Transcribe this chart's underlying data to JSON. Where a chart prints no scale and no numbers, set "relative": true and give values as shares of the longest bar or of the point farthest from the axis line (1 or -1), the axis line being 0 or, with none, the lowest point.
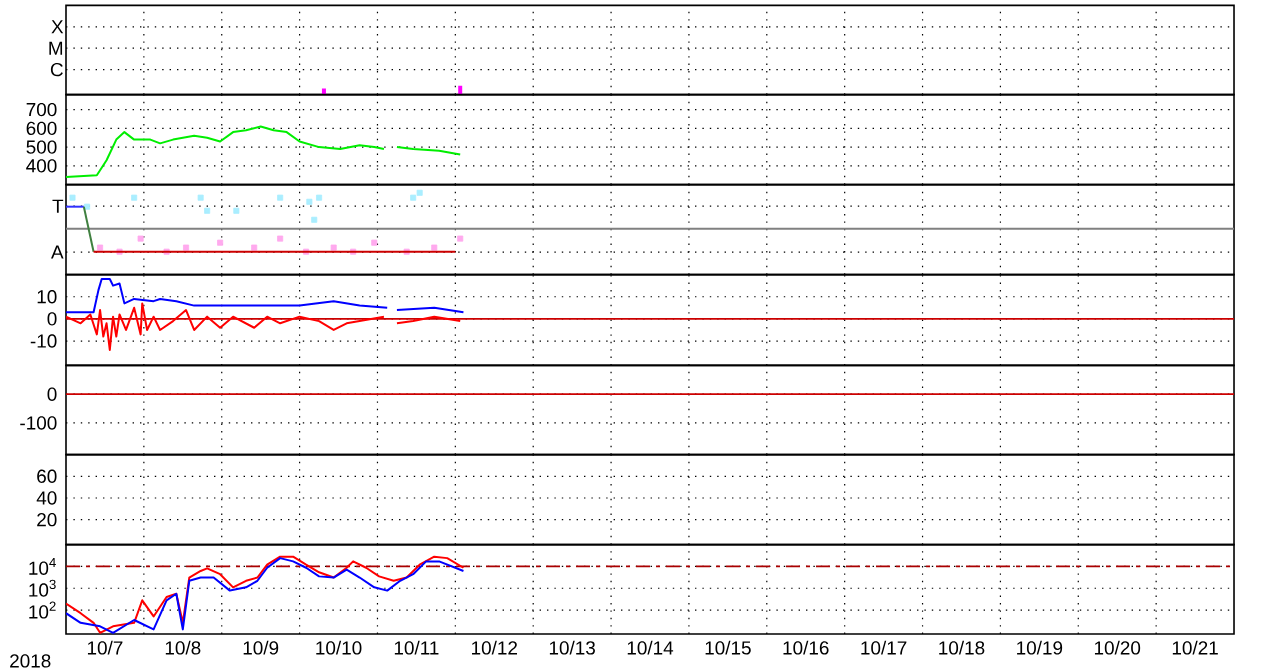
{
  "chart_data": [
    {
      "type": "bar",
      "relative": true,
      "annotations": [
        "X",
        "M",
        "C"
      ],
      "xlim": [
        "2018-10-07",
        "2018-10-22"
      ],
      "grid": true,
      "tick_labels": "y",
      "xticks": [
        {
          "value": "2018-10-08",
          "label": null
        },
        {
          "value": "2018-10-09",
          "label": null
        },
        {
          "value": "2018-10-10",
          "label": null
        },
        {
          "value": "2018-10-11",
          "label": null
        },
        {
          "value": "2018-10-12",
          "label": null
        },
        {
          "value": "2018-10-13",
          "label": null
        },
        {
          "value": "2018-10-14",
          "label": null
        },
        {
          "value": "2018-10-15",
          "label": null
        },
        {
          "value": "2018-10-16",
          "label": null
        },
        {
          "value": "2018-10-17",
          "label": null
        },
        {
          "value": "2018-10-18",
          "label": null
        },
        {
          "value": "2018-10-19",
          "label": null
        },
        {
          "value": "2018-10-20",
          "label": null
        },
        {
          "value": "2018-10-21",
          "label": null
        }
      ],
      "x": [
        "2018-10-10T07:30",
        "2018-10-12T01:30"
      ],
      "values": [
        0.67,
        1
      ],
      "color": "#ff00ff"
    },
    {
      "type": "line",
      "xlim": [
        "2018-10-07",
        "2018-10-22"
      ],
      "ylim": [
        300,
        780
      ],
      "yticks": [
        400,
        500,
        600,
        700
      ],
      "grid": true,
      "tick_labels": "y",
      "marker": "none",
      "xticks": [
        {
          "value": "2018-10-08",
          "label": null
        },
        {
          "value": "2018-10-09",
          "label": null
        },
        {
          "value": "2018-10-10",
          "label": null
        },
        {
          "value": "2018-10-11",
          "label": null
        },
        {
          "value": "2018-10-12",
          "label": null
        },
        {
          "value": "2018-10-13",
          "label": null
        },
        {
          "value": "2018-10-14",
          "label": null
        },
        {
          "value": "2018-10-15",
          "label": null
        },
        {
          "value": "2018-10-16",
          "label": null
        },
        {
          "value": "2018-10-17",
          "label": null
        },
        {
          "value": "2018-10-18",
          "label": null
        },
        {
          "value": "2018-10-19",
          "label": null
        },
        {
          "value": "2018-10-20",
          "label": null
        },
        {
          "value": "2018-10-21",
          "label": null
        }
      ],
      "x": [
        "2018-10-07T00:00",
        "2018-10-07T09:30",
        "2018-10-07T12:30",
        "2018-10-07T15:30",
        "2018-10-07T18:00",
        "2018-10-07T21:00",
        "2018-10-08T02:00",
        "2018-10-08T05:00",
        "2018-10-08T09:00",
        "2018-10-08T15:30",
        "2018-10-08T19:30",
        "2018-10-08T23:30",
        "2018-10-09T03:30",
        "2018-10-09T07:30",
        "2018-10-09T12:00",
        "2018-10-09T16:00",
        "2018-10-09T20:00",
        "2018-10-10T00:00",
        "2018-10-10T06:00",
        "2018-10-10T12:30",
        "2018-10-10T18:30",
        "2018-10-10T23:00",
        "2018-10-11T02:00",
        "2018-10-11T04:00",
        "2018-10-11T06:00",
        "2018-10-11T11:00",
        "2018-10-11T19:00",
        "2018-10-12T01:30"
      ],
      "values": [
        340,
        350,
        430,
        540,
        580,
        540,
        540,
        520,
        540,
        560,
        550,
        530,
        580,
        590,
        610,
        590,
        580,
        530,
        500,
        490,
        510,
        500,
        490,
        null,
        500,
        490,
        480,
        460
      ],
      "color": "#00ee00"
    },
    {
      "type": "scatter",
      "relative": true,
      "annotations": [
        "T",
        "A"
      ],
      "xlim": [
        "2018-10-07",
        "2018-10-22"
      ],
      "grid": true,
      "tick_labels": "y",
      "marker": "square",
      "xticks": [
        {
          "value": "2018-10-08",
          "label": null
        },
        {
          "value": "2018-10-09",
          "label": null
        },
        {
          "value": "2018-10-10",
          "label": null
        },
        {
          "value": "2018-10-11",
          "label": null
        },
        {
          "value": "2018-10-12",
          "label": null
        },
        {
          "value": "2018-10-13",
          "label": null
        },
        {
          "value": "2018-10-14",
          "label": null
        },
        {
          "value": "2018-10-15",
          "label": null
        },
        {
          "value": "2018-10-16",
          "label": null
        },
        {
          "value": "2018-10-17",
          "label": null
        },
        {
          "value": "2018-10-18",
          "label": null
        },
        {
          "value": "2018-10-19",
          "label": null
        },
        {
          "value": "2018-10-20",
          "label": null
        },
        {
          "value": "2018-10-21",
          "label": null
        }
      ],
      "ref_lines": [
        {
          "axis": "y",
          "value": 0.56,
          "color": "#808080"
        }
      ],
      "series": [
        {
          "color": "#aaeeff",
          "x": [
            "2018-10-07T02:00",
            "2018-10-07T06:30",
            "2018-10-07T21:00",
            "2018-10-08T17:30",
            "2018-10-08T19:30",
            "2018-10-09T04:30",
            "2018-10-09T18:00",
            "2018-10-10T03:00",
            "2018-10-10T04:30",
            "2018-10-10T06:00",
            "2018-10-11T11:00",
            "2018-10-11T13:00"
          ],
          "values": [
            0.94,
            0.83,
            0.94,
            0.94,
            0.78,
            0.78,
            0.94,
            0.89,
            0.67,
            0.94,
            0.94,
            1.0
          ]
        },
        {
          "color": "#ffaaee",
          "x": [
            "2018-10-07T10:30",
            "2018-10-07T16:30",
            "2018-10-07T23:00",
            "2018-10-08T07:00",
            "2018-10-08T13:00",
            "2018-10-08T23:30",
            "2018-10-09T10:00",
            "2018-10-09T18:00",
            "2018-10-10T02:00",
            "2018-10-10T10:30",
            "2018-10-10T16:30",
            "2018-10-10T23:00",
            "2018-10-11T09:00",
            "2018-10-11T17:30",
            "2018-10-12T01:30"
          ],
          "values": [
            0.33,
            0.28,
            0.44,
            0.28,
            0.33,
            0.39,
            0.33,
            0.44,
            0.28,
            0.33,
            0.28,
            0.39,
            0.28,
            0.33,
            0.44
          ]
        },
        {
          "type": "line",
          "marker": "none",
          "color": "#3030ff",
          "x": [
            "2018-10-07T00:00",
            "2018-10-07T05:30"
          ],
          "values": [
            0.83,
            0.83
          ]
        },
        {
          "type": "line",
          "marker": "none",
          "color": "#408040",
          "x": [
            "2018-10-07T05:30",
            "2018-10-07T08:30"
          ],
          "values": [
            0.83,
            0.28
          ]
        },
        {
          "type": "line",
          "marker": "none",
          "color": "#cc0000",
          "x": [
            "2018-10-07T08:30",
            "2018-10-12T00:00"
          ],
          "values": [
            0.28,
            0.28
          ]
        }
      ]
    },
    {
      "type": "line",
      "xlim": [
        "2018-10-07",
        "2018-10-22"
      ],
      "ylim": [
        -21,
        20
      ],
      "yticks": [
        -10,
        0,
        10
      ],
      "grid": true,
      "tick_labels": "y",
      "marker": "none",
      "xticks": [
        {
          "value": "2018-10-08",
          "label": null
        },
        {
          "value": "2018-10-09",
          "label": null
        },
        {
          "value": "2018-10-10",
          "label": null
        },
        {
          "value": "2018-10-11",
          "label": null
        },
        {
          "value": "2018-10-12",
          "label": null
        },
        {
          "value": "2018-10-13",
          "label": null
        },
        {
          "value": "2018-10-14",
          "label": null
        },
        {
          "value": "2018-10-15",
          "label": null
        },
        {
          "value": "2018-10-16",
          "label": null
        },
        {
          "value": "2018-10-17",
          "label": null
        },
        {
          "value": "2018-10-18",
          "label": null
        },
        {
          "value": "2018-10-19",
          "label": null
        },
        {
          "value": "2018-10-20",
          "label": null
        },
        {
          "value": "2018-10-21",
          "label": null
        }
      ],
      "ref_lines": [
        {
          "axis": "y",
          "value": 0,
          "color": "#cc0000"
        }
      ],
      "series": [
        {
          "color": "#0000ff",
          "x": [
            "2018-10-07T00:00",
            "2018-10-07T08:30",
            "2018-10-07T10:00",
            "2018-10-07T11:00",
            "2018-10-07T13:30",
            "2018-10-07T14:30",
            "2018-10-07T16:30",
            "2018-10-07T18:00",
            "2018-10-07T21:00",
            "2018-10-08T03:00",
            "2018-10-08T05:00",
            "2018-10-08T10:00",
            "2018-10-08T15:30",
            "2018-10-09T03:30",
            "2018-10-09T20:00",
            "2018-10-10T00:00",
            "2018-10-10T10:30",
            "2018-10-10T18:30",
            "2018-10-11T03:00",
            "2018-10-11T04:30",
            "2018-10-11T06:00",
            "2018-10-11T17:30",
            "2018-10-12T02:30"
          ],
          "values": [
            3,
            3,
            13,
            18,
            18,
            15,
            16,
            7,
            9,
            8,
            9,
            8,
            6,
            6,
            6,
            6,
            8,
            6,
            5,
            null,
            4,
            5,
            3
          ]
        },
        {
          "color": "#ff0000",
          "x": [
            "2018-10-07T00:00",
            "2018-10-07T04:30",
            "2018-10-07T07:30",
            "2018-10-07T09:30",
            "2018-10-07T10:30",
            "2018-10-07T11:30",
            "2018-10-07T12:30",
            "2018-10-07T13:30",
            "2018-10-07T14:30",
            "2018-10-07T15:30",
            "2018-10-07T16:30",
            "2018-10-07T18:30",
            "2018-10-07T21:00",
            "2018-10-07T23:00",
            "2018-10-07T23:30",
            "2018-10-08T01:00",
            "2018-10-08T03:00",
            "2018-10-08T05:00",
            "2018-10-08T09:00",
            "2018-10-08T13:00",
            "2018-10-08T15:30",
            "2018-10-08T19:30",
            "2018-10-08T23:30",
            "2018-10-09T03:30",
            "2018-10-09T10:00",
            "2018-10-09T14:00",
            "2018-10-09T18:00",
            "2018-10-10T00:00",
            "2018-10-10T06:00",
            "2018-10-10T10:30",
            "2018-10-10T14:30",
            "2018-10-10T18:30",
            "2018-10-11T02:00",
            "2018-10-11T04:00",
            "2018-10-11T06:00",
            "2018-10-11T11:00",
            "2018-10-11T17:30",
            "2018-10-12T01:30"
          ],
          "values": [
            1,
            -2,
            2,
            -7,
            4,
            -8,
            -2,
            -14,
            1,
            -8,
            2,
            -5,
            5,
            -7,
            7,
            -5,
            1,
            -5,
            -1,
            4,
            -5,
            1,
            -4,
            1,
            -4,
            1,
            -2,
            1,
            -1,
            -5,
            -2,
            -1,
            1,
            null,
            -2,
            -1,
            1,
            -1
          ]
        }
      ]
    },
    {
      "type": "line",
      "xlim": [
        "2018-10-07",
        "2018-10-22"
      ],
      "ylim": [
        -210,
        100
      ],
      "yticks": [
        -100,
        0
      ],
      "grid": true,
      "tick_labels": "y",
      "xticks": [
        {
          "value": "2018-10-08",
          "label": null
        },
        {
          "value": "2018-10-09",
          "label": null
        },
        {
          "value": "2018-10-10",
          "label": null
        },
        {
          "value": "2018-10-11",
          "label": null
        },
        {
          "value": "2018-10-12",
          "label": null
        },
        {
          "value": "2018-10-13",
          "label": null
        },
        {
          "value": "2018-10-14",
          "label": null
        },
        {
          "value": "2018-10-15",
          "label": null
        },
        {
          "value": "2018-10-16",
          "label": null
        },
        {
          "value": "2018-10-17",
          "label": null
        },
        {
          "value": "2018-10-18",
          "label": null
        },
        {
          "value": "2018-10-19",
          "label": null
        },
        {
          "value": "2018-10-20",
          "label": null
        },
        {
          "value": "2018-10-21",
          "label": null
        }
      ],
      "ref_lines": [
        {
          "axis": "y",
          "value": 0,
          "color": "#cc0000"
        }
      ]
    },
    {
      "type": "line",
      "xlim": [
        "2018-10-07",
        "2018-10-22"
      ],
      "ylim": [
        -3,
        80
      ],
      "yticks": [
        20,
        40,
        60
      ],
      "grid": true,
      "tick_labels": "y",
      "xticks": [
        {
          "value": "2018-10-08",
          "label": null
        },
        {
          "value": "2018-10-09",
          "label": null
        },
        {
          "value": "2018-10-10",
          "label": null
        },
        {
          "value": "2018-10-11",
          "label": null
        },
        {
          "value": "2018-10-12",
          "label": null
        },
        {
          "value": "2018-10-13",
          "label": null
        },
        {
          "value": "2018-10-14",
          "label": null
        },
        {
          "value": "2018-10-15",
          "label": null
        },
        {
          "value": "2018-10-16",
          "label": null
        },
        {
          "value": "2018-10-17",
          "label": null
        },
        {
          "value": "2018-10-18",
          "label": null
        },
        {
          "value": "2018-10-19",
          "label": null
        },
        {
          "value": "2018-10-20",
          "label": null
        },
        {
          "value": "2018-10-21",
          "label": null
        }
      ]
    },
    {
      "type": "line",
      "xlabel": "2018",
      "log": true,
      "xlim": [
        "2018-10-07",
        "2018-10-22"
      ],
      "ylim": [
        8,
        100000
      ],
      "yticks": [
        {
          "value": 100,
          "label": "10$^{2}$"
        },
        {
          "value": 1000,
          "label": "10$^{3}$"
        },
        {
          "value": 10000,
          "label": "10$^{4}$"
        }
      ],
      "grid": true,
      "marker": "none",
      "xticks": [
        {
          "value": "2018-10-07T12:00",
          "label": "10/7"
        },
        {
          "value": "2018-10-08T12:00",
          "label": "10/8"
        },
        {
          "value": "2018-10-09T12:00",
          "label": "10/9"
        },
        {
          "value": "2018-10-10T12:00",
          "label": "10/10"
        },
        {
          "value": "2018-10-11T12:00",
          "label": "10/11"
        },
        {
          "value": "2018-10-12T12:00",
          "label": "10/12"
        },
        {
          "value": "2018-10-13T12:00",
          "label": "10/13"
        },
        {
          "value": "2018-10-14T12:00",
          "label": "10/14"
        },
        {
          "value": "2018-10-15T12:00",
          "label": "10/15"
        },
        {
          "value": "2018-10-16T12:00",
          "label": "10/16"
        },
        {
          "value": "2018-10-17T12:00",
          "label": "10/17"
        },
        {
          "value": "2018-10-18T12:00",
          "label": "10/18"
        },
        {
          "value": "2018-10-19T12:00",
          "label": "10/19"
        },
        {
          "value": "2018-10-20T12:00",
          "label": "10/20"
        },
        {
          "value": "2018-10-21T12:00",
          "label": "10/21"
        },
        {
          "value": "2018-10-08",
          "label": null
        },
        {
          "value": "2018-10-09",
          "label": null
        },
        {
          "value": "2018-10-10",
          "label": null
        },
        {
          "value": "2018-10-11",
          "label": null
        },
        {
          "value": "2018-10-12",
          "label": null
        },
        {
          "value": "2018-10-13",
          "label": null
        },
        {
          "value": "2018-10-14",
          "label": null
        },
        {
          "value": "2018-10-15",
          "label": null
        },
        {
          "value": "2018-10-16",
          "label": null
        },
        {
          "value": "2018-10-17",
          "label": null
        },
        {
          "value": "2018-10-18",
          "label": null
        },
        {
          "value": "2018-10-19",
          "label": null
        },
        {
          "value": "2018-10-20",
          "label": null
        },
        {
          "value": "2018-10-21",
          "label": null
        }
      ],
      "ref_lines": [
        {
          "axis": "y",
          "value": 10000,
          "color": "#aa0000",
          "line_style": "dashed"
        }
      ],
      "series": [
        {
          "color": "#ff0000",
          "x": [
            "2018-10-07T00:00",
            "2018-10-07T04:30",
            "2018-10-07T08:30",
            "2018-10-07T10:30",
            "2018-10-07T14:30",
            "2018-10-07T21:00",
            "2018-10-07T23:30",
            "2018-10-08T03:00",
            "2018-10-08T07:00",
            "2018-10-08T10:00",
            "2018-10-08T12:00",
            "2018-10-08T14:00",
            "2018-10-08T17:30",
            "2018-10-08T19:30",
            "2018-10-08T23:30",
            "2018-10-09T03:30",
            "2018-10-09T07:30",
            "2018-10-09T11:00",
            "2018-10-09T14:00",
            "2018-10-09T18:00",
            "2018-10-09T22:00",
            "2018-10-10T02:00",
            "2018-10-10T06:00",
            "2018-10-10T10:30",
            "2018-10-10T14:30",
            "2018-10-10T16:30",
            "2018-10-10T20:30",
            "2018-10-11T00:30",
            "2018-10-11T05:00",
            "2018-10-11T09:00",
            "2018-10-11T13:00",
            "2018-10-11T17:30",
            "2018-10-11T21:30",
            "2018-10-12T02:30"
          ],
          "values": [
            200,
            72,
            26,
            9.1,
            18,
            26,
            280,
            51,
            400,
            560,
            26,
            3100,
            6200,
            8100,
            4400,
            1100,
            2200,
            3100,
            12000,
            28000,
            28000,
            12000,
            5400,
            3100,
            8700,
            17000,
            8700,
            3500,
            2200,
            3100,
            12000,
            28000,
            24000,
            8700
          ]
        },
        {
          "color": "#0000ff",
          "x": [
            "2018-10-07T00:00",
            "2018-10-07T04:30",
            "2018-10-07T10:30",
            "2018-10-07T14:30",
            "2018-10-07T21:00",
            "2018-10-08T03:00",
            "2018-10-08T07:00",
            "2018-10-08T10:00",
            "2018-10-08T12:00",
            "2018-10-08T14:00",
            "2018-10-08T17:30",
            "2018-10-08T21:30",
            "2018-10-09T02:30",
            "2018-10-09T07:30",
            "2018-10-09T11:00",
            "2018-10-09T14:00",
            "2018-10-09T18:00",
            "2018-10-09T22:00",
            "2018-10-10T02:00",
            "2018-10-10T06:00",
            "2018-10-10T10:30",
            "2018-10-10T14:30",
            "2018-10-10T18:30",
            "2018-10-10T23:00",
            "2018-10-11T03:00",
            "2018-10-11T07:00",
            "2018-10-11T11:00",
            "2018-10-11T15:00",
            "2018-10-11T19:00",
            "2018-10-12T02:30"
          ],
          "values": [
            72,
            26,
            18,
            9.1,
            35,
            13,
            280,
            560,
            13,
            2200,
            3100,
            3100,
            780,
            1100,
            2200,
            8700,
            24000,
            17000,
            8700,
            3500,
            3100,
            7100,
            3100,
            1100,
            780,
            2200,
            4400,
            17000,
            17000,
            6200
          ]
        }
      ]
    }
  ]
}
